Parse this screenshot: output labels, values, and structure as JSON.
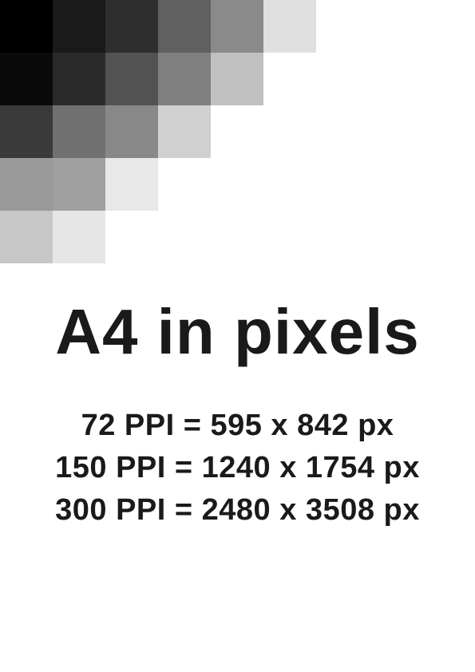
{
  "title": "A4 in pixels",
  "resolutions": [
    "72 PPI = 595 x 842 px",
    "150 PPI = 1240 x 1754 px",
    "300 PPI = 2480 x 3508 px"
  ],
  "pixel_art": {
    "cell_size": 66,
    "cells": [
      {
        "row": 0,
        "col": 0,
        "color": "#000000"
      },
      {
        "row": 0,
        "col": 1,
        "color": "#1a1a1a"
      },
      {
        "row": 0,
        "col": 2,
        "color": "#2e2e2e"
      },
      {
        "row": 0,
        "col": 3,
        "color": "#606060"
      },
      {
        "row": 0,
        "col": 4,
        "color": "#8a8a8a"
      },
      {
        "row": 0,
        "col": 5,
        "color": "#e0e0e0"
      },
      {
        "row": 1,
        "col": 0,
        "color": "#0a0a0a"
      },
      {
        "row": 1,
        "col": 1,
        "color": "#2a2a2a"
      },
      {
        "row": 1,
        "col": 2,
        "color": "#525252"
      },
      {
        "row": 1,
        "col": 3,
        "color": "#808080"
      },
      {
        "row": 1,
        "col": 4,
        "color": "#c0c0c0"
      },
      {
        "row": 2,
        "col": 0,
        "color": "#3a3a3a"
      },
      {
        "row": 2,
        "col": 1,
        "color": "#707070"
      },
      {
        "row": 2,
        "col": 2,
        "color": "#888888"
      },
      {
        "row": 2,
        "col": 3,
        "color": "#d0d0d0"
      },
      {
        "row": 3,
        "col": 0,
        "color": "#9a9a9a"
      },
      {
        "row": 3,
        "col": 1,
        "color": "#a0a0a0"
      },
      {
        "row": 3,
        "col": 2,
        "color": "#e8e8e8"
      },
      {
        "row": 4,
        "col": 0,
        "color": "#c8c8c8"
      },
      {
        "row": 4,
        "col": 1,
        "color": "#e6e6e6"
      }
    ]
  },
  "colors": {
    "background": "#ffffff",
    "text": "#1a1a1a"
  },
  "typography": {
    "title_fontsize": 80,
    "title_fontweight": 700,
    "body_fontsize": 38,
    "body_fontweight": 700,
    "font_family": "Arial"
  }
}
